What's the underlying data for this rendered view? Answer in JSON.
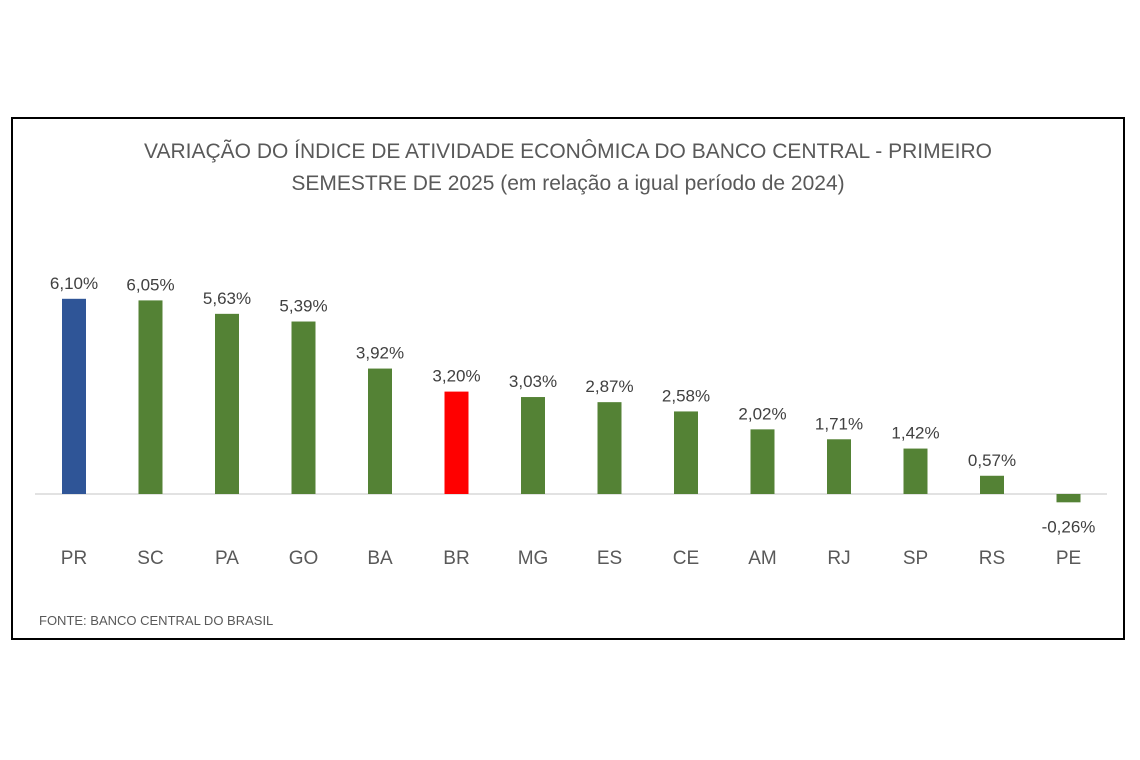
{
  "chart_data": {
    "type": "bar",
    "title_line1": "VARIAÇÃO DO ÍNDICE DE ATIVIDADE ECONÔMICA DO BANCO CENTRAL - PRIMEIRO",
    "title_line2": "SEMESTRE DE 2025 (em relação a igual período de 2024)",
    "xlabel": "",
    "ylabel": "",
    "categories": [
      "PR",
      "SC",
      "PA",
      "GO",
      "BA",
      "BR",
      "MG",
      "ES",
      "CE",
      "AM",
      "RJ",
      "SP",
      "RS",
      "PE"
    ],
    "values": [
      6.1,
      6.05,
      5.63,
      5.39,
      3.92,
      3.2,
      3.03,
      2.87,
      2.58,
      2.02,
      1.71,
      1.42,
      0.57,
      -0.26
    ],
    "data_labels": [
      "6,10%",
      "6,05%",
      "5,63%",
      "5,39%",
      "3,92%",
      "3,20%",
      "3,03%",
      "2,87%",
      "2,58%",
      "2,02%",
      "1,71%",
      "1,42%",
      "0,57%",
      "-0,26%"
    ],
    "colors": [
      "#2F5597",
      "#548235",
      "#548235",
      "#548235",
      "#548235",
      "#FF0000",
      "#548235",
      "#548235",
      "#548235",
      "#548235",
      "#548235",
      "#548235",
      "#548235",
      "#548235"
    ],
    "grid": false,
    "legend": "none",
    "source": "FONTE: BANCO CENTRAL DO BRASIL"
  }
}
